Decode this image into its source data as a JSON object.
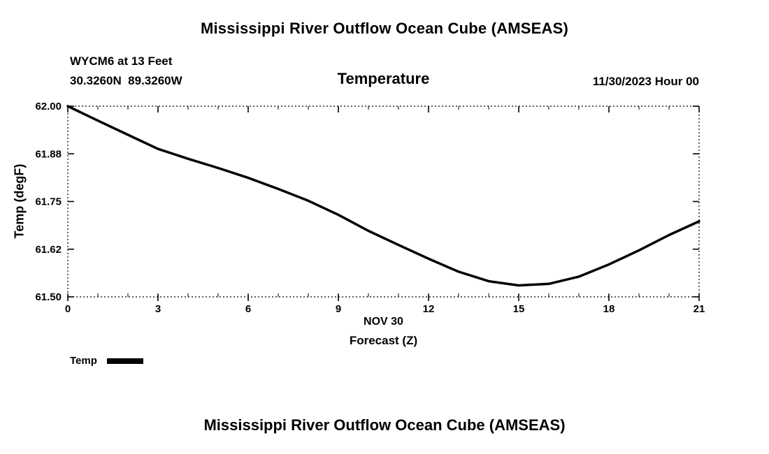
{
  "header": {
    "title": "Mississippi River Outflow Ocean Cube (AMSEAS)",
    "station": "WYCM6 at 13 Feet",
    "coords": "30.3260N  89.3260W",
    "datetime": "11/30/2023 Hour 00"
  },
  "chart_data": {
    "type": "line",
    "title": "Temperature",
    "xlabel": "Forecast (Z)",
    "x_date_label": "NOV 30",
    "ylabel": "Temp (degF)",
    "xlim": [
      0,
      21
    ],
    "ylim": [
      61.5,
      62.0
    ],
    "xticks": [
      0,
      3,
      6,
      9,
      12,
      15,
      18,
      21
    ],
    "x_minor_step": 1,
    "ytick_values": [
      61.5,
      61.625,
      61.75,
      61.875,
      62.0
    ],
    "ytick_labels": [
      "61.50",
      "61.62",
      "61.75",
      "61.88",
      "62.00"
    ],
    "grid": false,
    "legend_position": "bottom-left",
    "line_color": "#000000",
    "legend": [
      {
        "label": "Temp",
        "color": "#000000"
      }
    ],
    "series": [
      {
        "name": "Temp",
        "x": [
          0,
          1,
          2,
          3,
          4,
          5,
          6,
          7,
          8,
          9,
          10,
          11,
          12,
          13,
          14,
          15,
          16,
          17,
          18,
          19,
          20,
          21
        ],
        "values": [
          62.0,
          61.962,
          61.925,
          61.888,
          61.862,
          61.838,
          61.812,
          61.783,
          61.752,
          61.715,
          61.673,
          61.636,
          61.6,
          61.566,
          61.541,
          61.53,
          61.534,
          61.553,
          61.585,
          61.622,
          61.662,
          61.698
        ]
      }
    ]
  },
  "footer": {
    "title": "Mississippi River Outflow Ocean Cube (AMSEAS)"
  }
}
